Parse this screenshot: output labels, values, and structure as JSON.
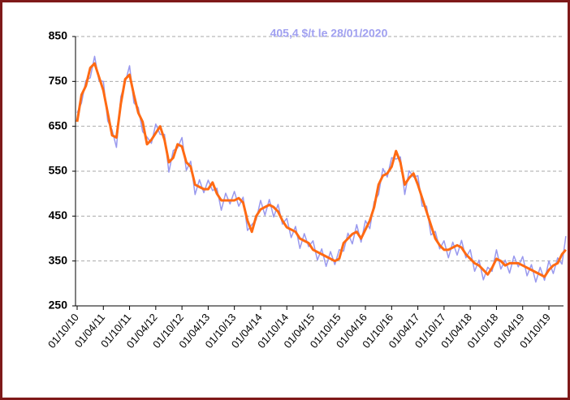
{
  "chart_data": {
    "type": "line",
    "annotation": "405,4 $/t le 28/01/2020",
    "x": [
      "01/10/10",
      "01/11/10",
      "01/12/10",
      "01/01/11",
      "01/02/11",
      "01/03/11",
      "01/04/11",
      "01/05/11",
      "01/06/11",
      "01/07/11",
      "01/08/11",
      "01/09/11",
      "01/10/11",
      "01/11/11",
      "01/12/11",
      "01/01/12",
      "01/02/12",
      "01/03/12",
      "01/04/12",
      "01/05/12",
      "01/06/12",
      "01/07/12",
      "01/08/12",
      "01/09/12",
      "01/10/12",
      "01/11/12",
      "01/12/12",
      "01/01/13",
      "01/02/13",
      "01/03/13",
      "01/04/13",
      "01/05/13",
      "01/06/13",
      "01/07/13",
      "01/08/13",
      "01/09/13",
      "01/10/13",
      "01/11/13",
      "01/12/13",
      "01/01/14",
      "01/02/14",
      "01/03/14",
      "01/04/14",
      "01/05/14",
      "01/06/14",
      "01/07/14",
      "01/08/14",
      "01/09/14",
      "01/10/14",
      "01/11/14",
      "01/12/14",
      "01/01/15",
      "01/02/15",
      "01/03/15",
      "01/04/15",
      "01/05/15",
      "01/06/15",
      "01/07/15",
      "01/08/15",
      "01/09/15",
      "01/10/15",
      "01/11/15",
      "01/12/15",
      "01/01/16",
      "01/02/16",
      "01/03/16",
      "01/04/16",
      "01/05/16",
      "01/06/16",
      "01/07/16",
      "01/08/16",
      "01/09/16",
      "01/10/16",
      "01/11/16",
      "01/12/16",
      "01/01/17",
      "01/02/17",
      "01/03/17",
      "01/04/17",
      "01/05/17",
      "01/06/17",
      "01/07/17",
      "01/08/17",
      "01/09/17",
      "01/10/17",
      "01/11/17",
      "01/12/17",
      "01/01/18",
      "01/02/18",
      "01/03/18",
      "01/04/18",
      "01/05/18",
      "01/06/18",
      "01/07/18",
      "01/08/18",
      "01/09/18",
      "01/10/18",
      "01/11/18",
      "01/12/18",
      "01/01/19",
      "01/02/19",
      "01/03/19",
      "01/04/19",
      "01/05/19",
      "01/06/19",
      "01/07/19",
      "01/08/19",
      "01/09/19",
      "01/10/19",
      "01/11/19",
      "01/12/19",
      "01/01/20",
      "28/01/20"
    ],
    "series": [
      {
        "color": "#9999ee",
        "width": 1.5,
        "values": [
          680,
          702,
          752,
          758,
          806,
          752,
          750,
          662,
          642,
          603,
          716,
          747,
          785,
          702,
          692,
          638,
          626,
          612,
          655,
          632,
          632,
          548,
          596,
          602,
          625,
          552,
          572,
          498,
          531,
          502,
          530,
          507,
          512,
          463,
          501,
          477,
          505,
          472,
          492,
          418,
          431,
          442,
          485,
          452,
          487,
          448,
          476,
          432,
          445,
          402,
          427,
          378,
          411,
          382,
          395,
          352,
          377,
          338,
          371,
          342,
          375,
          372,
          412,
          388,
          431,
          392,
          440,
          422,
          482,
          498,
          556,
          537,
          580,
          577,
          582,
          498,
          551,
          537,
          540,
          472,
          472,
          408,
          416,
          377,
          395,
          357,
          392,
          363,
          396,
          357,
          375,
          327,
          352,
          308,
          336,
          327,
          375,
          332,
          352,
          323,
          361,
          337,
          360,
          317,
          342,
          303,
          336,
          307,
          350,
          322,
          357,
          343,
          405.4
        ]
      },
      {
        "color": "#ff6a13",
        "width": 3,
        "values": [
          660,
          720,
          740,
          780,
          790,
          760,
          730,
          680,
          630,
          625,
          700,
          755,
          765,
          720,
          680,
          660,
          610,
          620,
          635,
          650,
          620,
          570,
          580,
          610,
          605,
          570,
          560,
          520,
          515,
          510,
          510,
          525,
          500,
          485,
          485,
          485,
          485,
          490,
          480,
          440,
          415,
          450,
          465,
          470,
          475,
          470,
          460,
          440,
          425,
          420,
          415,
          400,
          395,
          390,
          375,
          370,
          365,
          360,
          355,
          350,
          355,
          390,
          400,
          410,
          415,
          400,
          420,
          440,
          470,
          520,
          540,
          545,
          560,
          595,
          570,
          520,
          535,
          545,
          520,
          490,
          460,
          430,
          400,
          385,
          375,
          375,
          380,
          385,
          380,
          365,
          355,
          345,
          340,
          330,
          320,
          335,
          355,
          350,
          340,
          345,
          345,
          345,
          340,
          335,
          330,
          325,
          320,
          315,
          330,
          340,
          345,
          365,
          375
        ]
      }
    ],
    "ylim": [
      250,
      850
    ],
    "yticks": [
      250,
      350,
      450,
      550,
      650,
      750,
      850
    ],
    "xticks": [
      "01/10/10",
      "01/04/11",
      "01/10/11",
      "01/04/12",
      "01/10/12",
      "01/04/13",
      "01/10/13",
      "01/04/14",
      "01/10/14",
      "01/04/15",
      "01/10/15",
      "01/04/16",
      "01/10/16",
      "01/04/17",
      "01/10/17",
      "01/04/18",
      "01/10/18",
      "01/04/19",
      "01/10/19"
    ],
    "grid": true
  }
}
